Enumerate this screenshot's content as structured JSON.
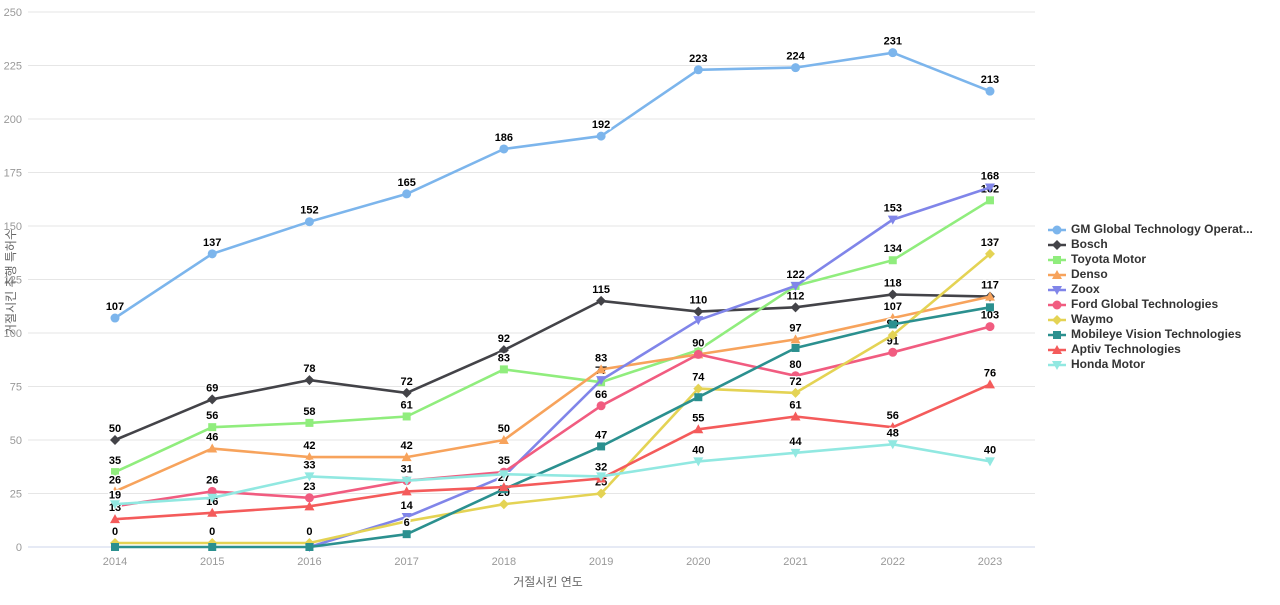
{
  "chart_data": {
    "type": "line",
    "title": "",
    "xlabel": "거절시킨 연도",
    "ylabel": "거절시킨 추행 특허수",
    "x": [
      2014,
      2015,
      2016,
      2017,
      2018,
      2019,
      2020,
      2021,
      2022,
      2023
    ],
    "ylim": [
      0,
      250
    ],
    "yticks": [
      0,
      25,
      50,
      75,
      100,
      125,
      150,
      175,
      200,
      225,
      250
    ],
    "grid": "horizontal",
    "legend_position": "right",
    "axis_line_color": "#ccd6eb",
    "grid_color": "#e6e6e6",
    "series": [
      {
        "name": "GM Global Technology Operat...",
        "color": "#7cb5ec",
        "marker": "circle",
        "values": [
          107,
          137,
          152,
          165,
          186,
          192,
          223,
          224,
          231,
          213
        ],
        "labels": [
          "107",
          "137",
          "152",
          "165",
          "186",
          "192",
          "223",
          "224",
          "231",
          "213"
        ]
      },
      {
        "name": "Bosch",
        "color": "#434348",
        "marker": "diamond",
        "values": [
          50,
          69,
          78,
          72,
          92,
          115,
          110,
          112,
          118,
          117
        ],
        "labels": [
          "50",
          "69",
          "78",
          "72",
          "92",
          "115",
          "110",
          "112",
          "118",
          ""
        ]
      },
      {
        "name": "Toyota Motor",
        "color": "#90ed7d",
        "marker": "square",
        "values": [
          35,
          56,
          58,
          61,
          83,
          77,
          92,
          122,
          134,
          162
        ],
        "labels": [
          "35",
          "56",
          "58",
          "61",
          "83",
          "77",
          "",
          "",
          "134",
          "162"
        ]
      },
      {
        "name": "Denso",
        "color": "#f7a35c",
        "marker": "triangle",
        "values": [
          26,
          46,
          42,
          42,
          50,
          83,
          90,
          97,
          107,
          117
        ],
        "labels": [
          "26",
          "46",
          "42",
          "42",
          "50",
          "83",
          "",
          "97",
          "107",
          "117"
        ]
      },
      {
        "name": "Zoox",
        "color": "#8085e9",
        "marker": "triangle-down",
        "values": [
          null,
          null,
          0,
          14,
          33,
          78,
          106,
          122,
          153,
          168
        ],
        "labels": [
          "",
          "",
          "",
          "14",
          "",
          "",
          "",
          "122",
          "153",
          "168"
        ]
      },
      {
        "name": "Ford Global Technologies",
        "color": "#f15c80",
        "marker": "circle",
        "values": [
          19,
          26,
          23,
          31,
          35,
          66,
          90,
          80,
          91,
          103
        ],
        "labels": [
          "19",
          "26",
          "23",
          "",
          "35",
          "66",
          "90",
          "80",
          "91",
          "103"
        ]
      },
      {
        "name": "Waymo",
        "color": "#e4d354",
        "marker": "diamond",
        "values": [
          0,
          0,
          0,
          12,
          20,
          25,
          74,
          72,
          99,
          137
        ],
        "labels": [
          "0",
          "0",
          "0",
          "",
          "20",
          "25",
          "74",
          "72",
          "99",
          "137"
        ]
      },
      {
        "name": "Mobileye Vision Technologies",
        "color": "#2b908f",
        "marker": "square",
        "values": [
          0,
          0,
          0,
          6,
          27,
          47,
          70,
          93,
          104,
          112
        ],
        "labels": [
          "",
          "",
          "",
          "6",
          "27",
          "47",
          "",
          "",
          "",
          ""
        ]
      },
      {
        "name": "Aptiv Technologies",
        "color": "#f45b5b",
        "marker": "triangle",
        "values": [
          13,
          16,
          19,
          26,
          28,
          32,
          55,
          61,
          56,
          76
        ],
        "labels": [
          "13",
          "16",
          "",
          "",
          "",
          "32",
          "55",
          "61",
          "56",
          "76"
        ]
      },
      {
        "name": "Honda Motor",
        "color": "#91e8e1",
        "marker": "triangle-down",
        "values": [
          20,
          23,
          33,
          31,
          34,
          33,
          40,
          44,
          48,
          40
        ],
        "labels": [
          "",
          "",
          "33",
          "31",
          "",
          "",
          "40",
          "44",
          "48",
          "40"
        ]
      }
    ]
  }
}
